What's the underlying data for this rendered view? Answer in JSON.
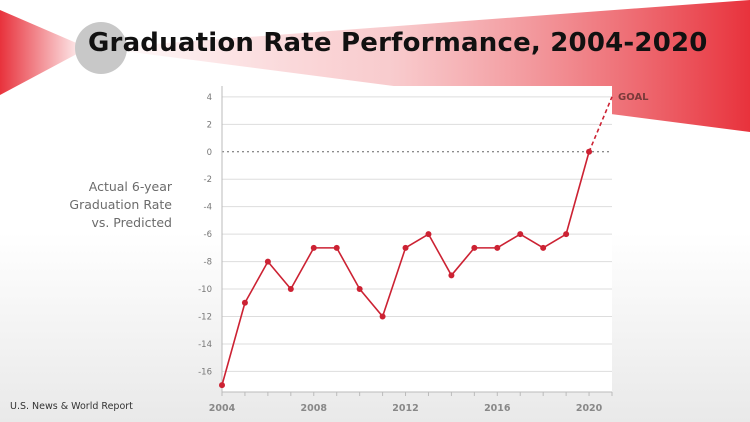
{
  "slide": {
    "title": "Graduation Rate Performance, 2004-2020",
    "ylabel_lines": [
      "Actual 6-year",
      "Graduation Rate",
      "vs. Predicted"
    ],
    "source": "U.S. News & World Report"
  },
  "chart_data": {
    "type": "line",
    "title": "Graduation Rate Performance, 2004-2020",
    "xlabel": "",
    "ylabel": "Actual 6-year Graduation Rate vs. Predicted",
    "x": [
      2004,
      2005,
      2006,
      2007,
      2008,
      2009,
      2010,
      2011,
      2012,
      2013,
      2014,
      2015,
      2016,
      2017,
      2018,
      2019,
      2020
    ],
    "values": [
      -17,
      -11,
      -8,
      -10,
      -7,
      -7,
      -10,
      -12,
      -7,
      -6,
      -9,
      -7,
      -7,
      -6,
      -7,
      -6,
      0
    ],
    "goal": {
      "label": "GOAL",
      "x": 2021,
      "y": 4
    },
    "xlim": [
      2004,
      2021
    ],
    "ylim": [
      -17.5,
      4.5
    ],
    "xticks": [
      2004,
      2008,
      2012,
      2016,
      2020
    ],
    "yticks": [
      4,
      2,
      0,
      -2,
      -4,
      -6,
      -8,
      -10,
      -12,
      -14,
      -16
    ],
    "grid": true,
    "colors": {
      "line": "#cc2233",
      "zero_line": "#666666",
      "grid": "#dddddd",
      "accent": "#e8323c"
    }
  }
}
